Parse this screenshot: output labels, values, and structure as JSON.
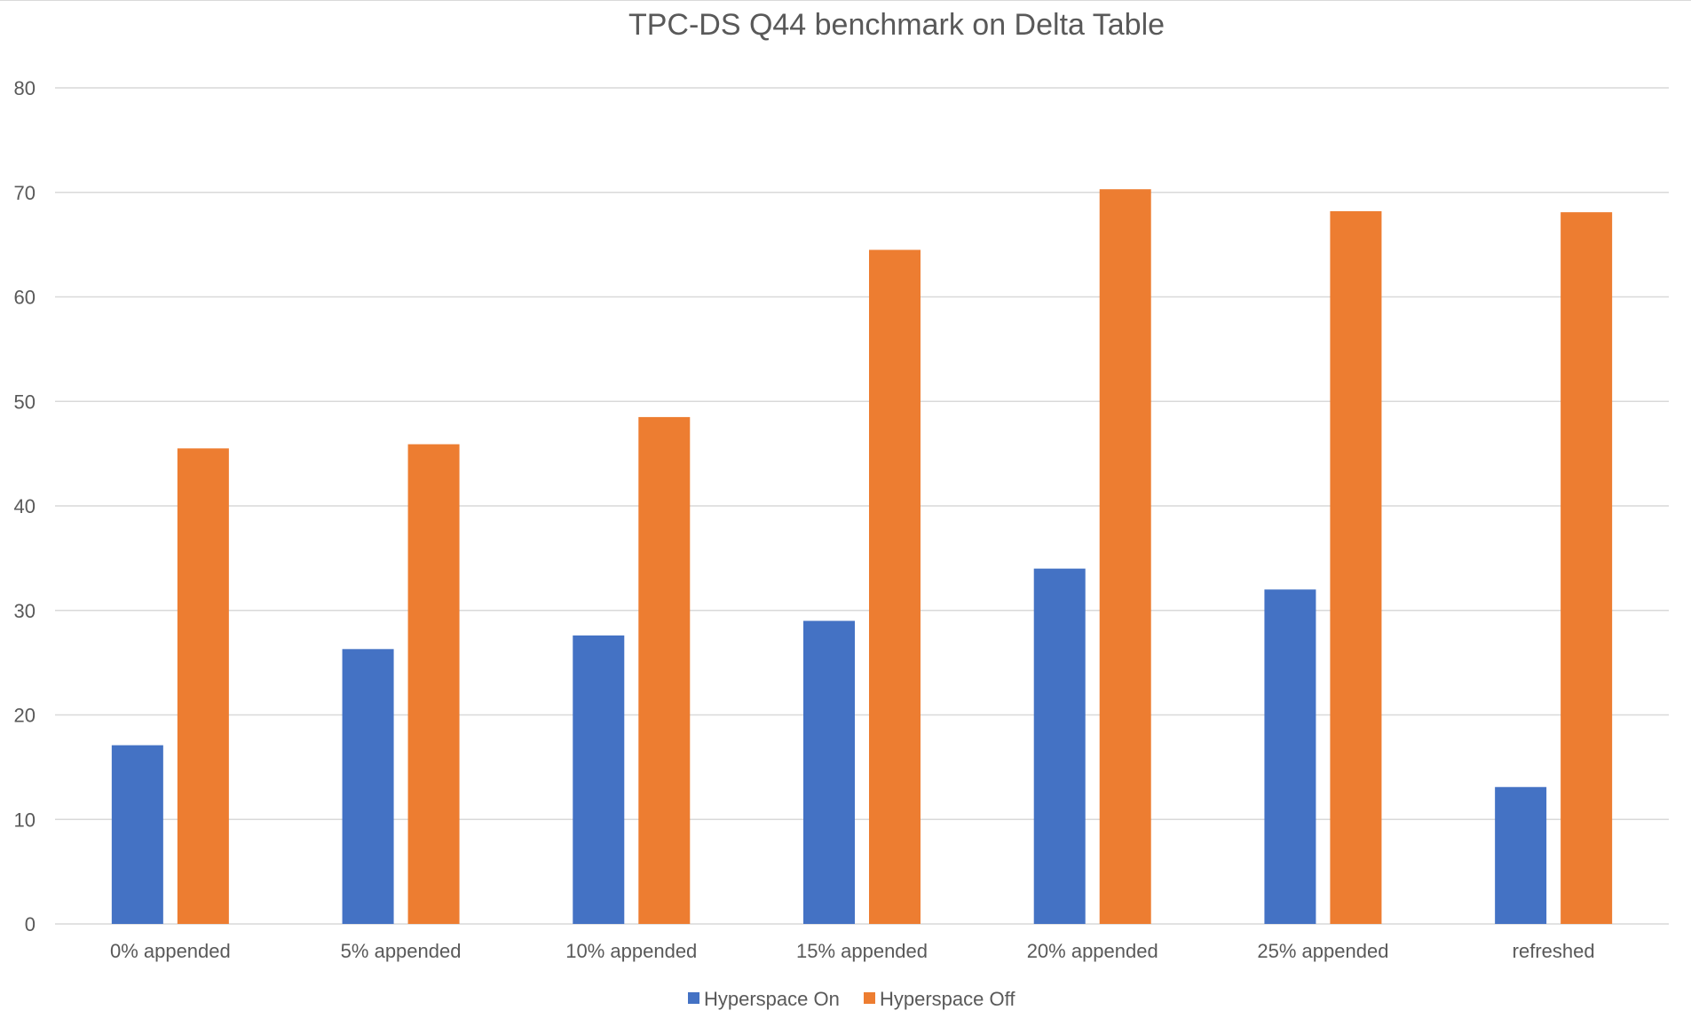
{
  "chart_data": {
    "type": "bar",
    "title": "TPC-DS Q44 benchmark on Delta Table",
    "xlabel": "",
    "ylabel": "",
    "categories": [
      "0% appended",
      "5% appended",
      "10% appended",
      "15% appended",
      "20% appended",
      "25% appended",
      "refreshed"
    ],
    "series": [
      {
        "name": "Hyperspace On",
        "color": "#4472C4",
        "values": [
          17.1,
          26.3,
          27.6,
          29,
          34,
          32,
          13.1
        ]
      },
      {
        "name": "Hyperspace Off",
        "color": "#ED7D31",
        "values": [
          45.5,
          45.9,
          48.5,
          64.5,
          70.3,
          68.2,
          68.1
        ]
      }
    ],
    "ylim": [
      0,
      80
    ],
    "yticks": [
      0,
      10,
      20,
      30,
      40,
      50,
      60,
      70,
      80
    ],
    "grid": true,
    "legend_position": "bottom"
  }
}
